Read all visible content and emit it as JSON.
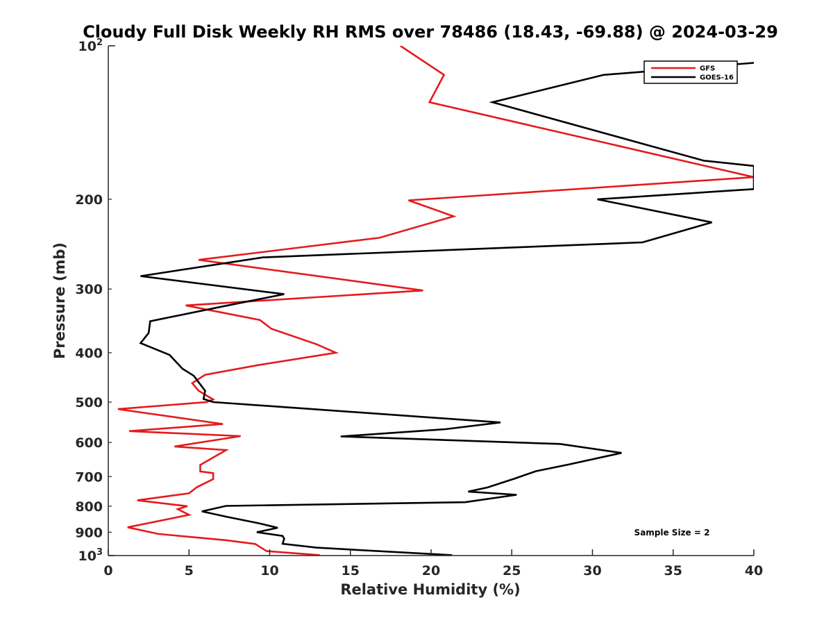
{
  "chart_data": {
    "type": "line",
    "title": "Cloudy Full Disk Weekly RH RMS over 78486 (18.43, -69.88) @ 2024-03-29",
    "xlabel": "Relative Humidity (%)",
    "ylabel": "Pressure (mb)",
    "xlim": [
      0,
      40
    ],
    "ylim": [
      100,
      1000
    ],
    "y_scale": "log",
    "y_reversed": true,
    "grid": false,
    "legend_position": "top-right",
    "annotation": "Sample Size = 2",
    "x_ticks": [
      {
        "value": 0,
        "label": "0"
      },
      {
        "value": 5,
        "label": "5"
      },
      {
        "value": 10,
        "label": "10"
      },
      {
        "value": 15,
        "label": "15"
      },
      {
        "value": 20,
        "label": "20"
      },
      {
        "value": 25,
        "label": "25"
      },
      {
        "value": 30,
        "label": "30"
      },
      {
        "value": 35,
        "label": "35"
      },
      {
        "value": 40,
        "label": "40"
      }
    ],
    "y_ticks": [
      {
        "value": 100,
        "base": "10",
        "exp": "2"
      },
      {
        "value": 200,
        "label": "200"
      },
      {
        "value": 300,
        "label": "300"
      },
      {
        "value": 400,
        "label": "400"
      },
      {
        "value": 500,
        "label": "500"
      },
      {
        "value": 600,
        "label": "600"
      },
      {
        "value": 700,
        "label": "700"
      },
      {
        "value": 800,
        "label": "800"
      },
      {
        "value": 900,
        "label": "900"
      },
      {
        "value": 1000,
        "base": "10",
        "exp": "3"
      }
    ],
    "series": [
      {
        "name": "GFS",
        "color": "#e41a1c",
        "points": [
          [
            18.1,
            100
          ],
          [
            20.8,
            114
          ],
          [
            19.9,
            129
          ],
          [
            40,
            181
          ],
          [
            18.6,
            201
          ],
          [
            21.4,
            216
          ],
          [
            16.8,
            238
          ],
          [
            5.6,
            263
          ],
          [
            19.5,
            302
          ],
          [
            4.8,
            323
          ],
          [
            9.4,
            345
          ],
          [
            10.1,
            359
          ],
          [
            12.9,
            385
          ],
          [
            14.1,
            400
          ],
          [
            9.3,
            423
          ],
          [
            6.0,
            442
          ],
          [
            5.2,
            459
          ],
          [
            5.6,
            475
          ],
          [
            6.5,
            494
          ],
          [
            6.1,
            500
          ],
          [
            0.6,
            516
          ],
          [
            7.1,
            552
          ],
          [
            1.3,
            570
          ],
          [
            8.2,
            583
          ],
          [
            4.1,
            611
          ],
          [
            7.3,
            621
          ],
          [
            5.7,
            664
          ],
          [
            5.7,
            684
          ],
          [
            6.5,
            689
          ],
          [
            6.5,
            708
          ],
          [
            5.5,
            734
          ],
          [
            5.0,
            755
          ],
          [
            1.8,
            779
          ],
          [
            4.9,
            800
          ],
          [
            4.3,
            811
          ],
          [
            5.0,
            832
          ],
          [
            1.2,
            880
          ],
          [
            3.1,
            907
          ],
          [
            7.3,
            933
          ],
          [
            9.1,
            949
          ],
          [
            9.8,
            980
          ],
          [
            13.1,
            998
          ]
        ]
      },
      {
        "name": "GOES-16",
        "color": "#000000",
        "points": [
          [
            40,
            108
          ],
          [
            30.7,
            114
          ],
          [
            23.8,
            129
          ],
          [
            36.9,
            168
          ],
          [
            40,
            172
          ],
          [
            40,
            191
          ],
          [
            30.3,
            200
          ],
          [
            37.4,
            222
          ],
          [
            33.1,
            243
          ],
          [
            9.6,
            260
          ],
          [
            2.0,
            283
          ],
          [
            10.9,
            307
          ],
          [
            7.0,
            325
          ],
          [
            2.6,
            347
          ],
          [
            2.5,
            366
          ],
          [
            2.0,
            383
          ],
          [
            3.8,
            404
          ],
          [
            4.6,
            430
          ],
          [
            5.3,
            444
          ],
          [
            6.0,
            475
          ],
          [
            5.9,
            493
          ],
          [
            6.5,
            500
          ],
          [
            24.3,
            548
          ],
          [
            20.9,
            565
          ],
          [
            14.4,
            584
          ],
          [
            28.0,
            604
          ],
          [
            31.8,
            629
          ],
          [
            28.5,
            663
          ],
          [
            26.5,
            683
          ],
          [
            25.2,
            706
          ],
          [
            23.5,
            735
          ],
          [
            22.3,
            749
          ],
          [
            25.3,
            760
          ],
          [
            22.1,
            786
          ],
          [
            7.3,
            799
          ],
          [
            5.8,
            819
          ],
          [
            7.3,
            839
          ],
          [
            9.3,
            864
          ],
          [
            10.5,
            882
          ],
          [
            9.2,
            900
          ],
          [
            10.8,
            915
          ],
          [
            10.9,
            927
          ],
          [
            10.8,
            948
          ],
          [
            12.9,
            965
          ],
          [
            17.2,
            982
          ],
          [
            21.3,
            998
          ]
        ]
      }
    ]
  }
}
